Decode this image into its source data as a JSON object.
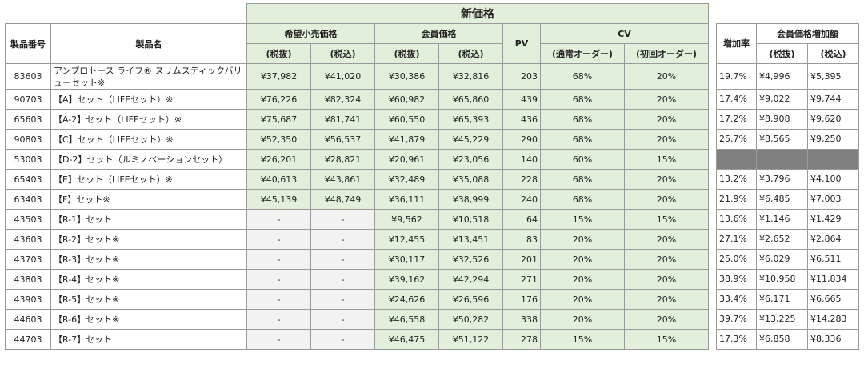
{
  "header": {
    "new_price": "新価格",
    "product_no": "製品番号",
    "product_name": "製品名",
    "retail_price": "希望小売価格",
    "member_price": "会員価格",
    "pv": "PV",
    "cv": "CV",
    "tax_excl": "(税抜)",
    "tax_incl": "(税込)",
    "cv_normal": "(通常オーダー)",
    "cv_first": "(初回オーダー)",
    "increase_rate": "増加率",
    "member_increase": "会員価格増加額"
  },
  "rows": [
    {
      "no": "83603",
      "name": "アンプロトース ライフ® スリムスティックバリューセット※",
      "retail_ex": "¥37,982",
      "retail_in": "¥41,020",
      "member_ex": "¥30,386",
      "member_in": "¥32,816",
      "pv": "203",
      "cv_normal": "68%",
      "cv_first": "20%",
      "rate": "19.7%",
      "inc_ex": "¥4,996",
      "inc_in": "¥5,395"
    },
    {
      "no": "90703",
      "name": "【A】セット（LIFEセット）※",
      "retail_ex": "¥76,226",
      "retail_in": "¥82,324",
      "member_ex": "¥60,982",
      "member_in": "¥65,860",
      "pv": "439",
      "cv_normal": "68%",
      "cv_first": "20%",
      "rate": "17.4%",
      "inc_ex": "¥9,022",
      "inc_in": "¥9,744"
    },
    {
      "no": "65603",
      "name": "【A-2】セット（LIFEセット）※",
      "retail_ex": "¥75,687",
      "retail_in": "¥81,741",
      "member_ex": "¥60,550",
      "member_in": "¥65,393",
      "pv": "436",
      "cv_normal": "68%",
      "cv_first": "20%",
      "rate": "17.2%",
      "inc_ex": "¥8,908",
      "inc_in": "¥9,620"
    },
    {
      "no": "90803",
      "name": "【C】セット（LIFEセット）※",
      "retail_ex": "¥52,350",
      "retail_in": "¥56,537",
      "member_ex": "¥41,879",
      "member_in": "¥45,229",
      "pv": "290",
      "cv_normal": "68%",
      "cv_first": "20%",
      "rate": "25.7%",
      "inc_ex": "¥8,565",
      "inc_in": "¥9,250"
    },
    {
      "no": "53003",
      "name": "【D-2】セット（ルミノベーションセット）",
      "retail_ex": "¥26,201",
      "retail_in": "¥28,821",
      "member_ex": "¥20,961",
      "member_in": "¥23,056",
      "pv": "140",
      "cv_normal": "60%",
      "cv_first": "15%",
      "rate": "",
      "inc_ex": "",
      "inc_in": ""
    },
    {
      "no": "65403",
      "name": "【E】セット（LIFEセット）※",
      "retail_ex": "¥40,613",
      "retail_in": "¥43,861",
      "member_ex": "¥32,489",
      "member_in": "¥35,088",
      "pv": "228",
      "cv_normal": "68%",
      "cv_first": "20%",
      "rate": "13.2%",
      "inc_ex": "¥3,796",
      "inc_in": "¥4,100"
    },
    {
      "no": "63403",
      "name": "【F】セット※",
      "retail_ex": "¥45,139",
      "retail_in": "¥48,749",
      "member_ex": "¥36,111",
      "member_in": "¥38,999",
      "pv": "240",
      "cv_normal": "68%",
      "cv_first": "20%",
      "rate": "21.9%",
      "inc_ex": "¥6,485",
      "inc_in": "¥7,003"
    },
    {
      "no": "43503",
      "name": "【R-1】セット",
      "retail_ex": "-",
      "retail_in": "-",
      "member_ex": "¥9,562",
      "member_in": "¥10,518",
      "pv": "64",
      "cv_normal": "15%",
      "cv_first": "15%",
      "rate": "13.6%",
      "inc_ex": "¥1,146",
      "inc_in": "¥1,429"
    },
    {
      "no": "43603",
      "name": "【R-2】セット※",
      "retail_ex": "-",
      "retail_in": "-",
      "member_ex": "¥12,455",
      "member_in": "¥13,451",
      "pv": "83",
      "cv_normal": "20%",
      "cv_first": "20%",
      "rate": "27.1%",
      "inc_ex": "¥2,652",
      "inc_in": "¥2,864"
    },
    {
      "no": "43703",
      "name": "【R-3】セット※",
      "retail_ex": "-",
      "retail_in": "-",
      "member_ex": "¥30,117",
      "member_in": "¥32,526",
      "pv": "201",
      "cv_normal": "20%",
      "cv_first": "20%",
      "rate": "25.0%",
      "inc_ex": "¥6,029",
      "inc_in": "¥6,511"
    },
    {
      "no": "43803",
      "name": "【R-4】セット※",
      "retail_ex": "-",
      "retail_in": "-",
      "member_ex": "¥39,162",
      "member_in": "¥42,294",
      "pv": "271",
      "cv_normal": "20%",
      "cv_first": "20%",
      "rate": "38.9%",
      "inc_ex": "¥10,958",
      "inc_in": "¥11,834"
    },
    {
      "no": "43903",
      "name": "【R-5】セット※",
      "retail_ex": "-",
      "retail_in": "-",
      "member_ex": "¥24,626",
      "member_in": "¥26,596",
      "pv": "176",
      "cv_normal": "20%",
      "cv_first": "20%",
      "rate": "33.4%",
      "inc_ex": "¥6,171",
      "inc_in": "¥6,665"
    },
    {
      "no": "44603",
      "name": "【R-6】セット※",
      "retail_ex": "-",
      "retail_in": "-",
      "member_ex": "¥46,558",
      "member_in": "¥50,282",
      "pv": "338",
      "cv_normal": "20%",
      "cv_first": "20%",
      "rate": "39.7%",
      "inc_ex": "¥13,225",
      "inc_in": "¥14,283"
    },
    {
      "no": "44703",
      "name": "【R-7】セット",
      "retail_ex": "-",
      "retail_in": "-",
      "member_ex": "¥46,475",
      "member_in": "¥51,122",
      "pv": "278",
      "cv_normal": "15%",
      "cv_first": "15%",
      "rate": "17.3%",
      "inc_ex": "¥6,858",
      "inc_in": "¥8,336"
    }
  ],
  "colors": {
    "green_fill": "#e2efda",
    "grey_fill": "#f2f2f2",
    "dark_fill": "#808080",
    "border": "#9a9a9a"
  }
}
